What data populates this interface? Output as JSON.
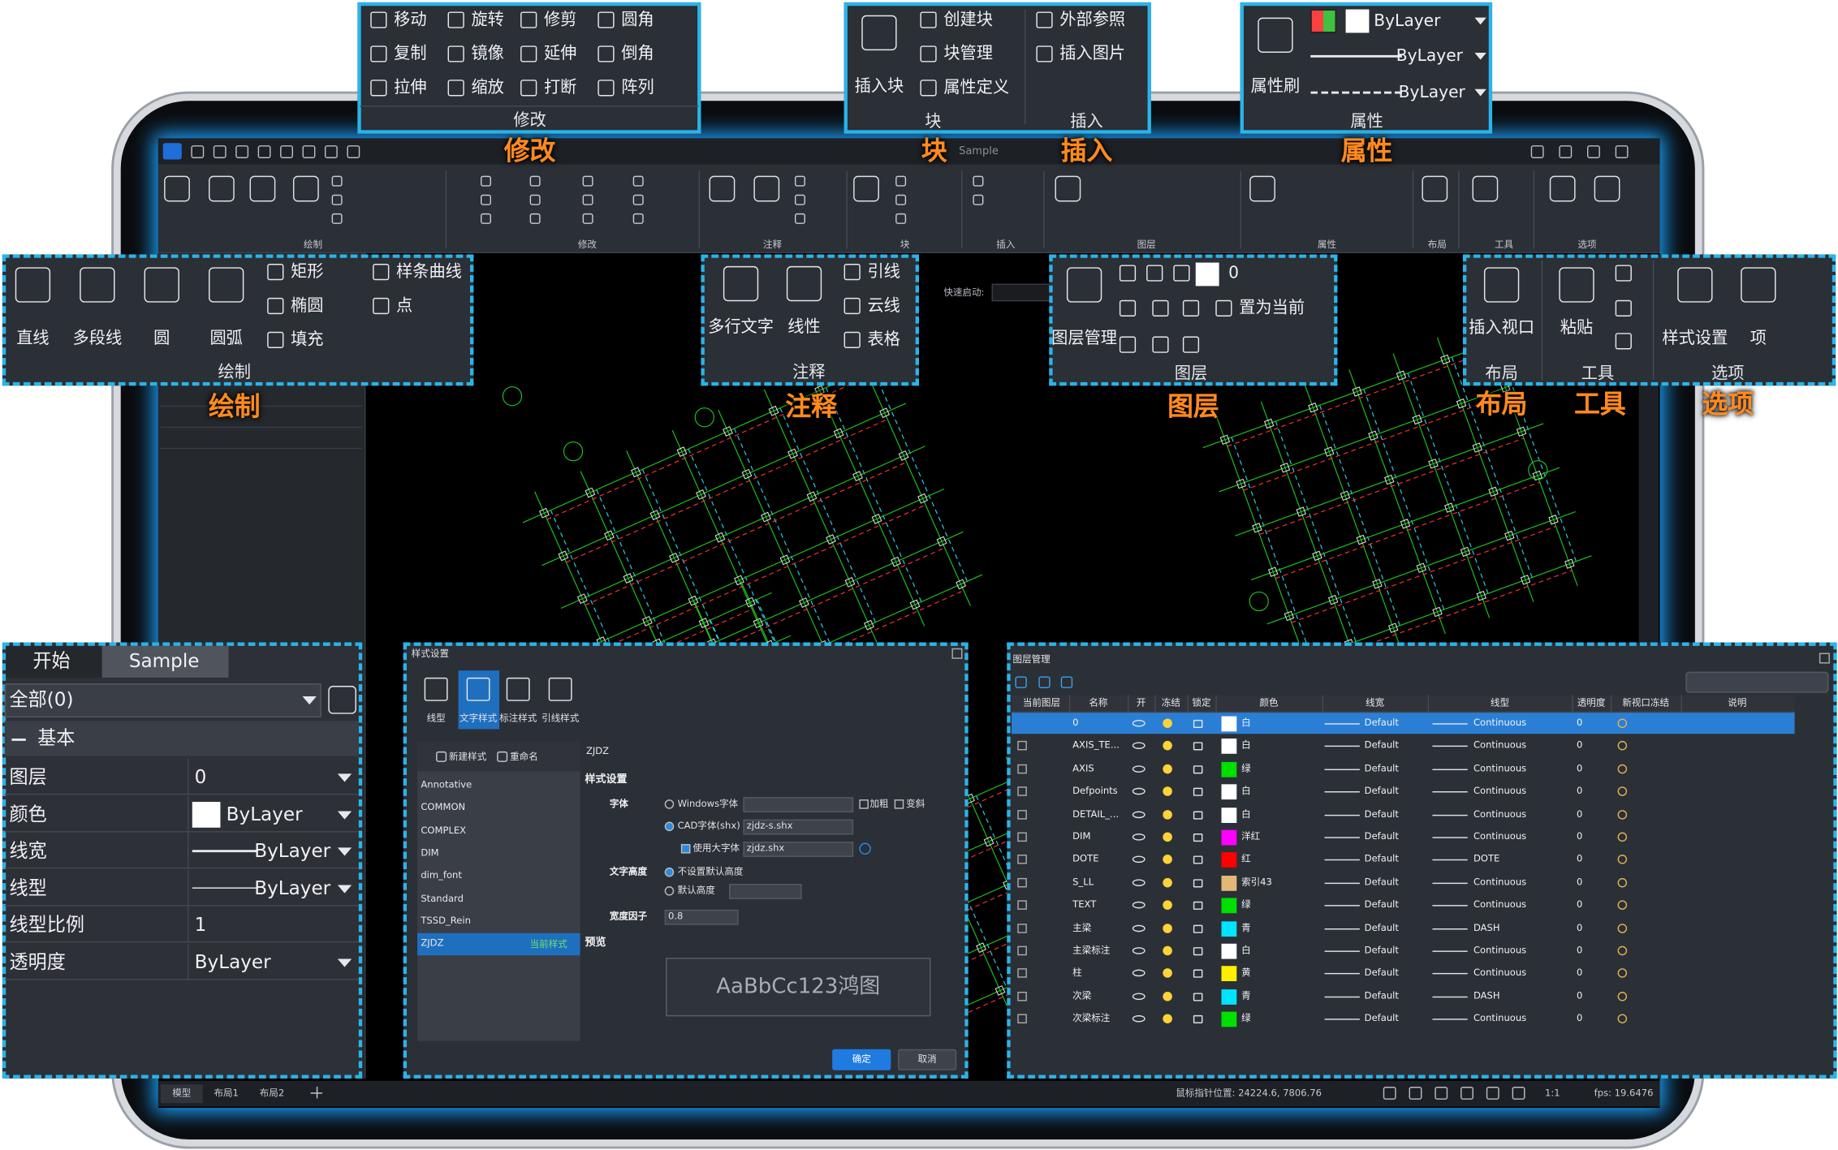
{
  "ribbon_groups": [
    "绘制",
    "修改",
    "注释",
    "块",
    "插入",
    "图层",
    "属性",
    "布局",
    "工具",
    "选项"
  ],
  "window_title": "Sample",
  "quick_launch": "快速启动:",
  "callouts": {
    "modify": {
      "items": [
        "移动",
        "旋转",
        "修剪",
        "圆角",
        "复制",
        "镜像",
        "延伸",
        "倒角",
        "拉伸",
        "缩放",
        "打断",
        "阵列"
      ]
    },
    "block_insert": {
      "items": [
        "插入块",
        "创建块",
        "块管理",
        "属性定义",
        "外部参照",
        "插入图片"
      ]
    },
    "properties": {
      "items": [
        "属性刷",
        "ByLayer",
        "ByLayer",
        "ByLayer"
      ]
    },
    "draw": {
      "items": [
        "直线",
        "多段线",
        "圆",
        "圆弧",
        "矩形",
        "椭圆",
        "填充",
        "样条曲线",
        "点"
      ]
    },
    "annotate": {
      "items": [
        "多行文字",
        "线性",
        "引线",
        "云线",
        "表格"
      ]
    },
    "layers": {
      "items": [
        "图层管理",
        "0",
        "置为当前"
      ]
    },
    "layout_tools_options": {
      "items": [
        "插入视口",
        "粘贴",
        "样式设置",
        "项"
      ]
    }
  },
  "property_panel": {
    "tabs": [
      "开始",
      "Sample"
    ],
    "filter": "全部(0)",
    "section": "基本",
    "rows": [
      {
        "label": "图层",
        "value": 0
      },
      {
        "label": "颜色",
        "value": "ByLayer"
      },
      {
        "label": "线宽",
        "value": "ByLayer"
      },
      {
        "label": "线型",
        "value": "ByLayer"
      },
      {
        "label": "线型比例",
        "value": 1
      },
      {
        "label": "透明度",
        "value": "ByLayer"
      }
    ]
  },
  "style_dialog": {
    "title": "样式设置",
    "tabs": [
      "线型",
      "文字样式",
      "标注样式",
      "引线样式"
    ],
    "actions": [
      "新建样式",
      "重命名"
    ],
    "styles": [
      "Annotative",
      "COMMON",
      "COMPLEX",
      "DIM",
      "dim_font",
      "Standard",
      "TSSD_Rein",
      "ZJDZ"
    ],
    "current_tag": "当前样式",
    "style_name": "ZJDZ",
    "section": "样式设置",
    "font_label": "字体",
    "windows_font": "Windows字体",
    "bold": "加粗",
    "italic": "变斜",
    "cad_font": "CAD字体(shx)",
    "cad_font_value": "zjdz-s.shx",
    "big_font": "使用大字体",
    "big_font_value": "zjdz.shx",
    "height_label": "文字高度",
    "no_default_height": "不设置默认高度",
    "default_height": "默认高度",
    "width_label": "宽度因子",
    "width_value": 0.8,
    "preview_label": "预览",
    "preview_text": "AaBbCc123鸿图",
    "ok": "确定",
    "cancel": "取消"
  },
  "layer_manager": {
    "title": "图层管理",
    "headers": [
      "当前图层",
      "名称",
      "开",
      "冻结",
      "锁定",
      "颜色",
      "线宽",
      "线型",
      "透明度",
      "新视口冻结",
      "说明"
    ],
    "rows": [
      {
        "name": "0",
        "color": "白",
        "swatch": "#ffffff",
        "linewidth": "Default",
        "linetype": "Continuous",
        "transparency": 0
      },
      {
        "name": "AXIS_TE...",
        "color": "白",
        "swatch": "#ffffff",
        "linewidth": "Default",
        "linetype": "Continuous",
        "transparency": 0
      },
      {
        "name": "AXIS",
        "color": "绿",
        "swatch": "#00e000",
        "linewidth": "Default",
        "linetype": "Continuous",
        "transparency": 0
      },
      {
        "name": "Defpoints",
        "color": "白",
        "swatch": "#ffffff",
        "linewidth": "Default",
        "linetype": "Continuous",
        "transparency": 0
      },
      {
        "name": "DETAIL_...",
        "color": "白",
        "swatch": "#ffffff",
        "linewidth": "Default",
        "linetype": "Continuous",
        "transparency": 0
      },
      {
        "name": "DIM",
        "color": "洋红",
        "swatch": "#ff00ff",
        "linewidth": "Default",
        "linetype": "Continuous",
        "transparency": 0
      },
      {
        "name": "DOTE",
        "color": "红",
        "swatch": "#ff0000",
        "linewidth": "Default",
        "linetype": "DOTE",
        "transparency": 0
      },
      {
        "name": "S_LL",
        "color": "索引43",
        "swatch": "#e3b877",
        "linewidth": "Default",
        "linetype": "Continuous",
        "transparency": 0
      },
      {
        "name": "TEXT",
        "color": "绿",
        "swatch": "#00e000",
        "linewidth": "Default",
        "linetype": "Continuous",
        "transparency": 0
      },
      {
        "name": "主梁",
        "color": "青",
        "swatch": "#00e5ff",
        "linewidth": "Default",
        "linetype": "DASH",
        "transparency": 0
      },
      {
        "name": "主梁标注",
        "color": "白",
        "swatch": "#ffffff",
        "linewidth": "Default",
        "linetype": "Continuous",
        "transparency": 0
      },
      {
        "name": "柱",
        "color": "黄",
        "swatch": "#ffee00",
        "linewidth": "Default",
        "linetype": "Continuous",
        "transparency": 0
      },
      {
        "name": "次梁",
        "color": "青",
        "swatch": "#00e5ff",
        "linewidth": "Default",
        "linetype": "DASH",
        "transparency": 0
      },
      {
        "name": "次梁标注",
        "color": "绿",
        "swatch": "#00e000",
        "linewidth": "Default",
        "linetype": "Continuous",
        "transparency": 0
      }
    ]
  },
  "status_bar": {
    "tabs": [
      "模型",
      "布局1",
      "布局2"
    ],
    "cursor": "鼠标指针位置: 24224.6, 7806.76",
    "scale": "1:1",
    "fps": "fps: 19.6476"
  }
}
